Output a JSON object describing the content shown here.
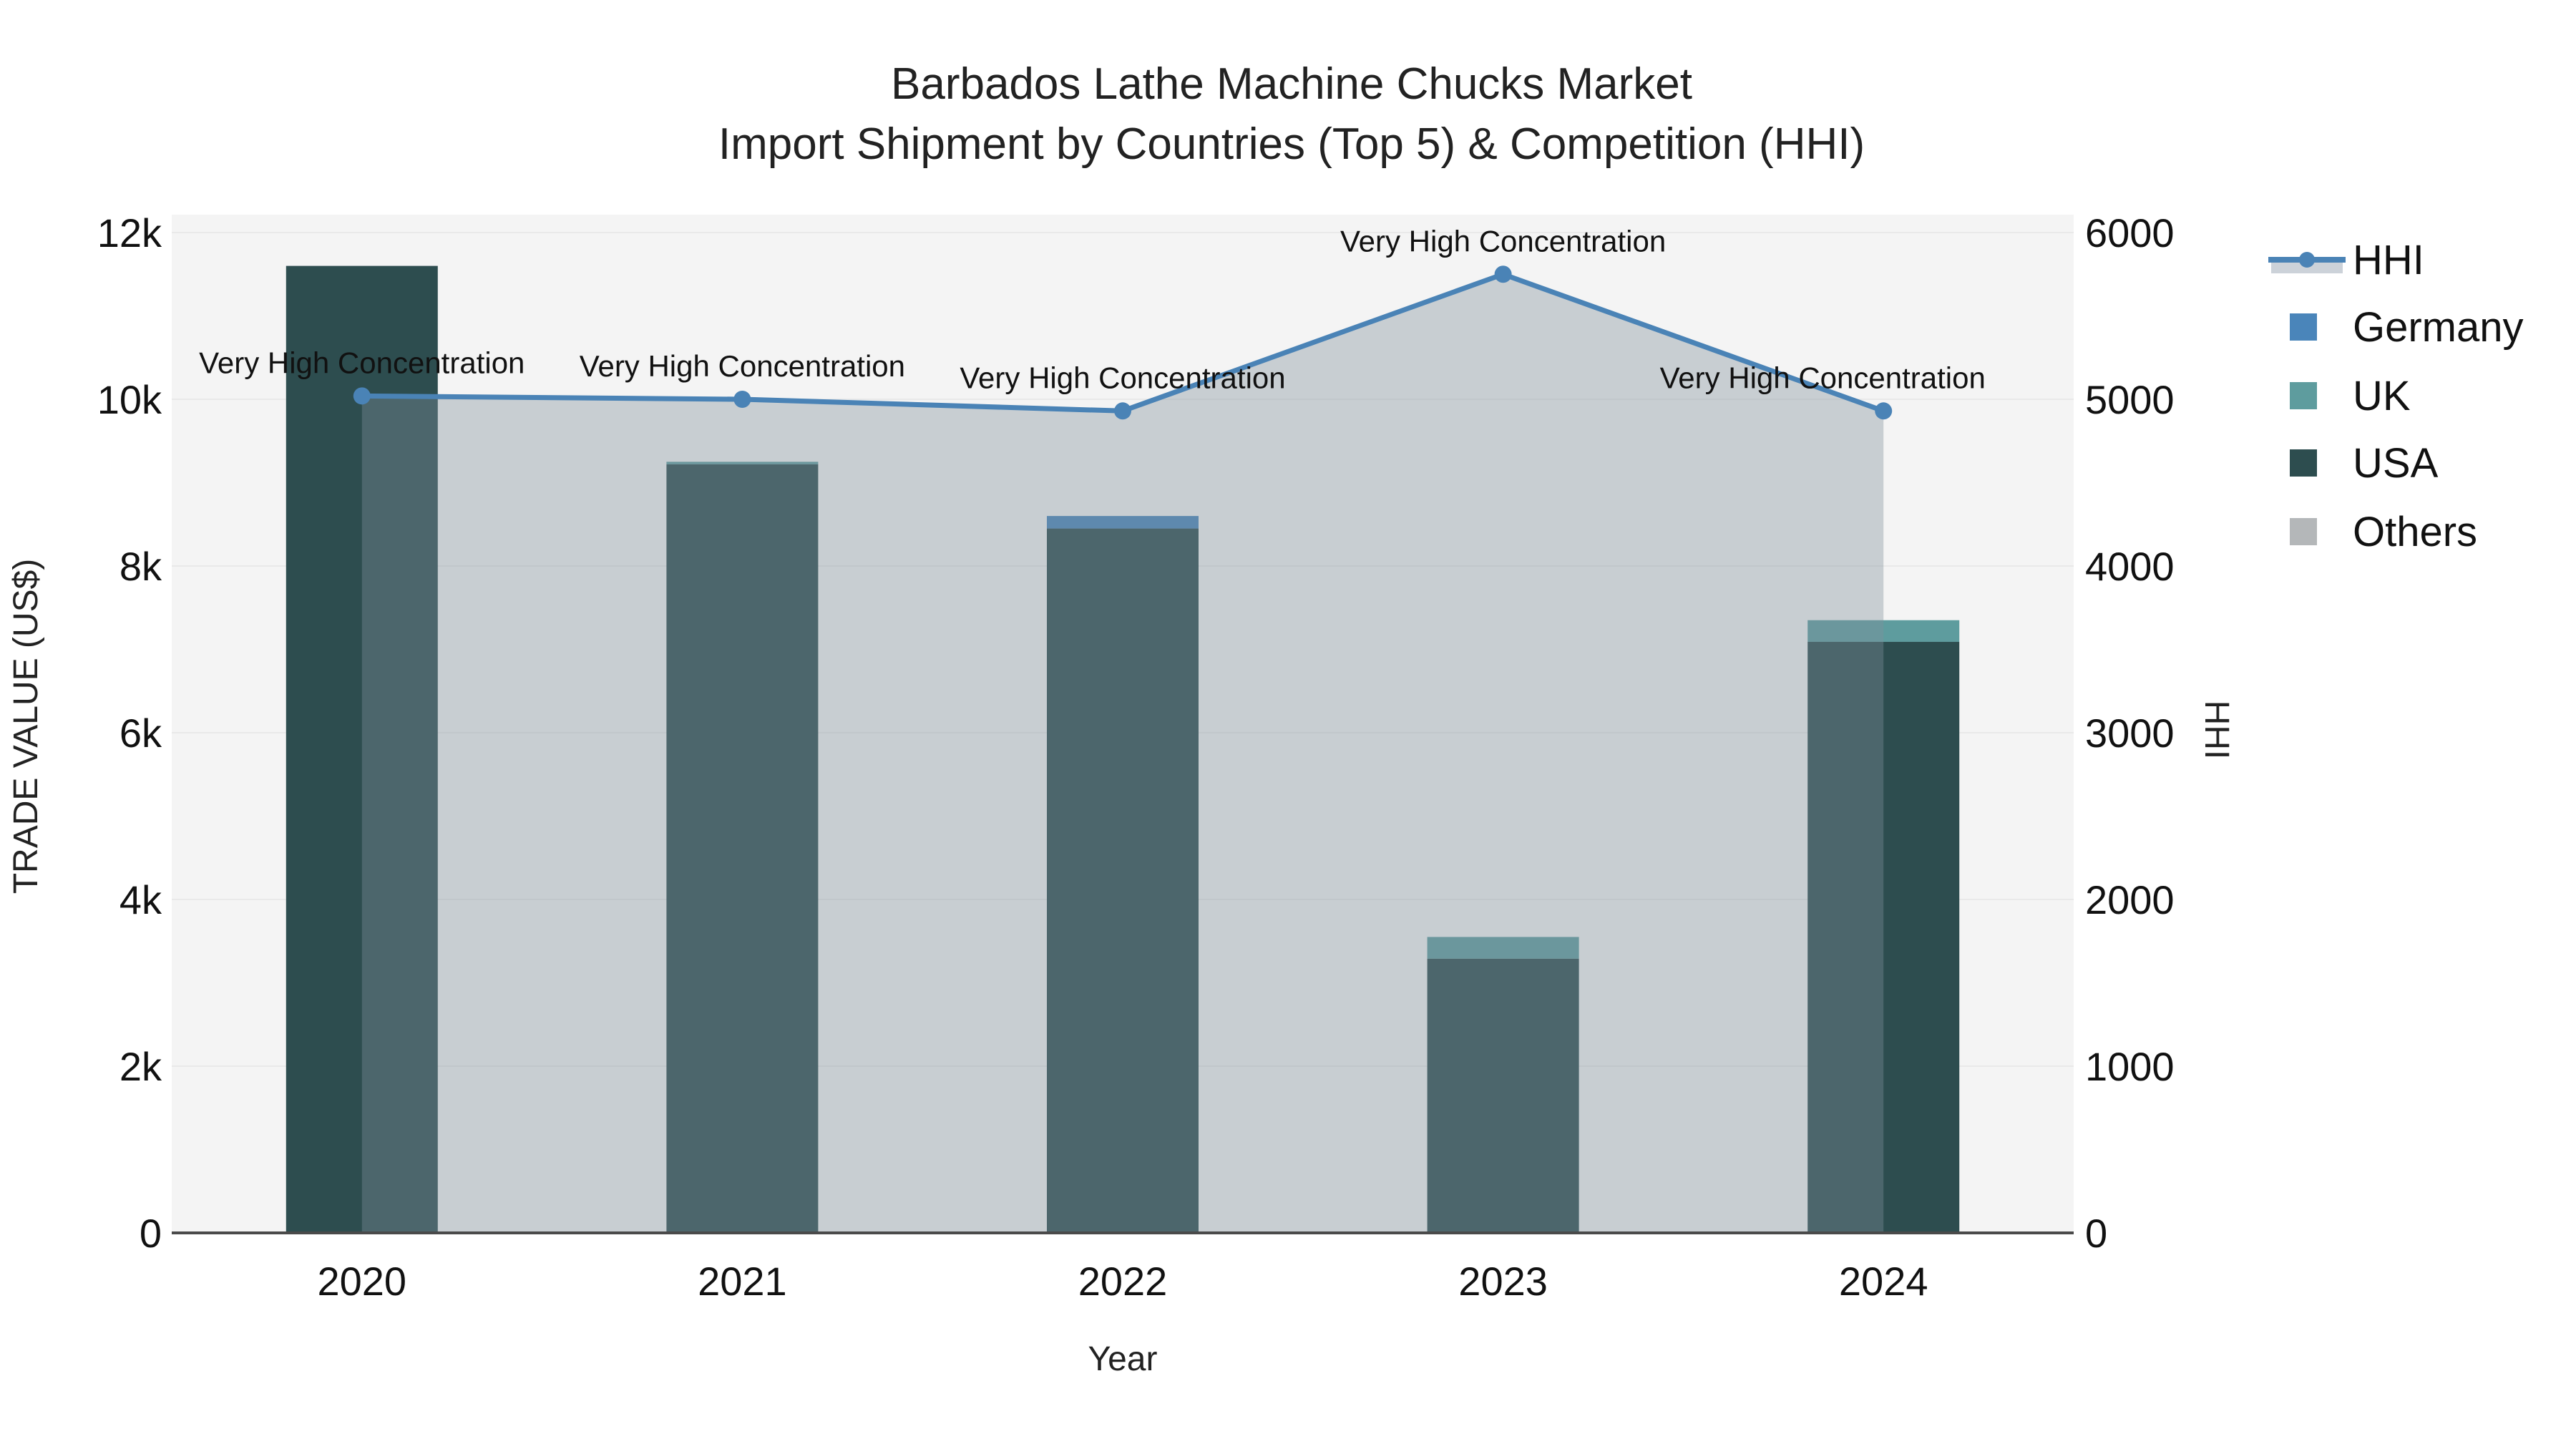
{
  "chart_data": {
    "type": "bar",
    "barmode": "stack",
    "title_line1": "Barbados Lathe Machine Chucks Market",
    "title_line2": "Import Shipment by Countries (Top 5) & Competition (HHI)",
    "xlabel": "Year",
    "categories": [
      "2020",
      "2021",
      "2022",
      "2023",
      "2024"
    ],
    "y_left": {
      "label": "TRADE VALUE (US$)",
      "max": 12000,
      "ticks": [
        {
          "v": 0,
          "label": "0"
        },
        {
          "v": 2000,
          "label": "2k"
        },
        {
          "v": 4000,
          "label": "4k"
        },
        {
          "v": 6000,
          "label": "6k"
        },
        {
          "v": 8000,
          "label": "8k"
        },
        {
          "v": 10000,
          "label": "10k"
        },
        {
          "v": 12000,
          "label": "12k"
        }
      ]
    },
    "y_right": {
      "label": "HHI",
      "max": 6000,
      "ticks": [
        {
          "v": 0,
          "label": "0"
        },
        {
          "v": 1000,
          "label": "1000"
        },
        {
          "v": 2000,
          "label": "2000"
        },
        {
          "v": 3000,
          "label": "3000"
        },
        {
          "v": 4000,
          "label": "4000"
        },
        {
          "v": 5000,
          "label": "5000"
        },
        {
          "v": 6000,
          "label": "6000"
        }
      ]
    },
    "series": [
      {
        "name": "USA",
        "axis": "left",
        "values": [
          11600,
          9220,
          8450,
          3290,
          7090
        ]
      },
      {
        "name": "UK",
        "axis": "left",
        "values": [
          0,
          30,
          0,
          260,
          260
        ]
      },
      {
        "name": "Germany",
        "axis": "left",
        "values": [
          0,
          0,
          150,
          0,
          0
        ]
      },
      {
        "name": "Others",
        "axis": "left",
        "values": [
          0,
          0,
          0,
          0,
          0
        ]
      }
    ],
    "line_series": {
      "name": "HHI",
      "axis": "right",
      "values": [
        5020,
        5000,
        4930,
        5750,
        4930
      ]
    },
    "annotations": [
      "Very High Concentration",
      "Very High Concentration",
      "Very High Concentration",
      "Very High Concentration",
      "Very High Concentration"
    ],
    "colors": {
      "Germany": "#4a85ba",
      "UK": "#5e9c9e",
      "USA": "#2d4d4f",
      "Others": "#b4b7b9",
      "HHI": "#4a83b6",
      "area_fill": "rgba(130,145,155,0.38)",
      "plot_bg": "#f4f4f4",
      "gridline": "#e9e9e9",
      "axis_line": "#4a4a4a"
    },
    "legend": {
      "items": [
        {
          "label": "HHI",
          "type": "line",
          "color": "#4a83b6"
        },
        {
          "label": "Germany",
          "type": "square",
          "color": "#4a85ba"
        },
        {
          "label": "UK",
          "type": "square",
          "color": "#5e9c9e"
        },
        {
          "label": "USA",
          "type": "square",
          "color": "#2d4d4f"
        },
        {
          "label": "Others",
          "type": "square",
          "color": "#b4b7b9"
        }
      ]
    }
  }
}
